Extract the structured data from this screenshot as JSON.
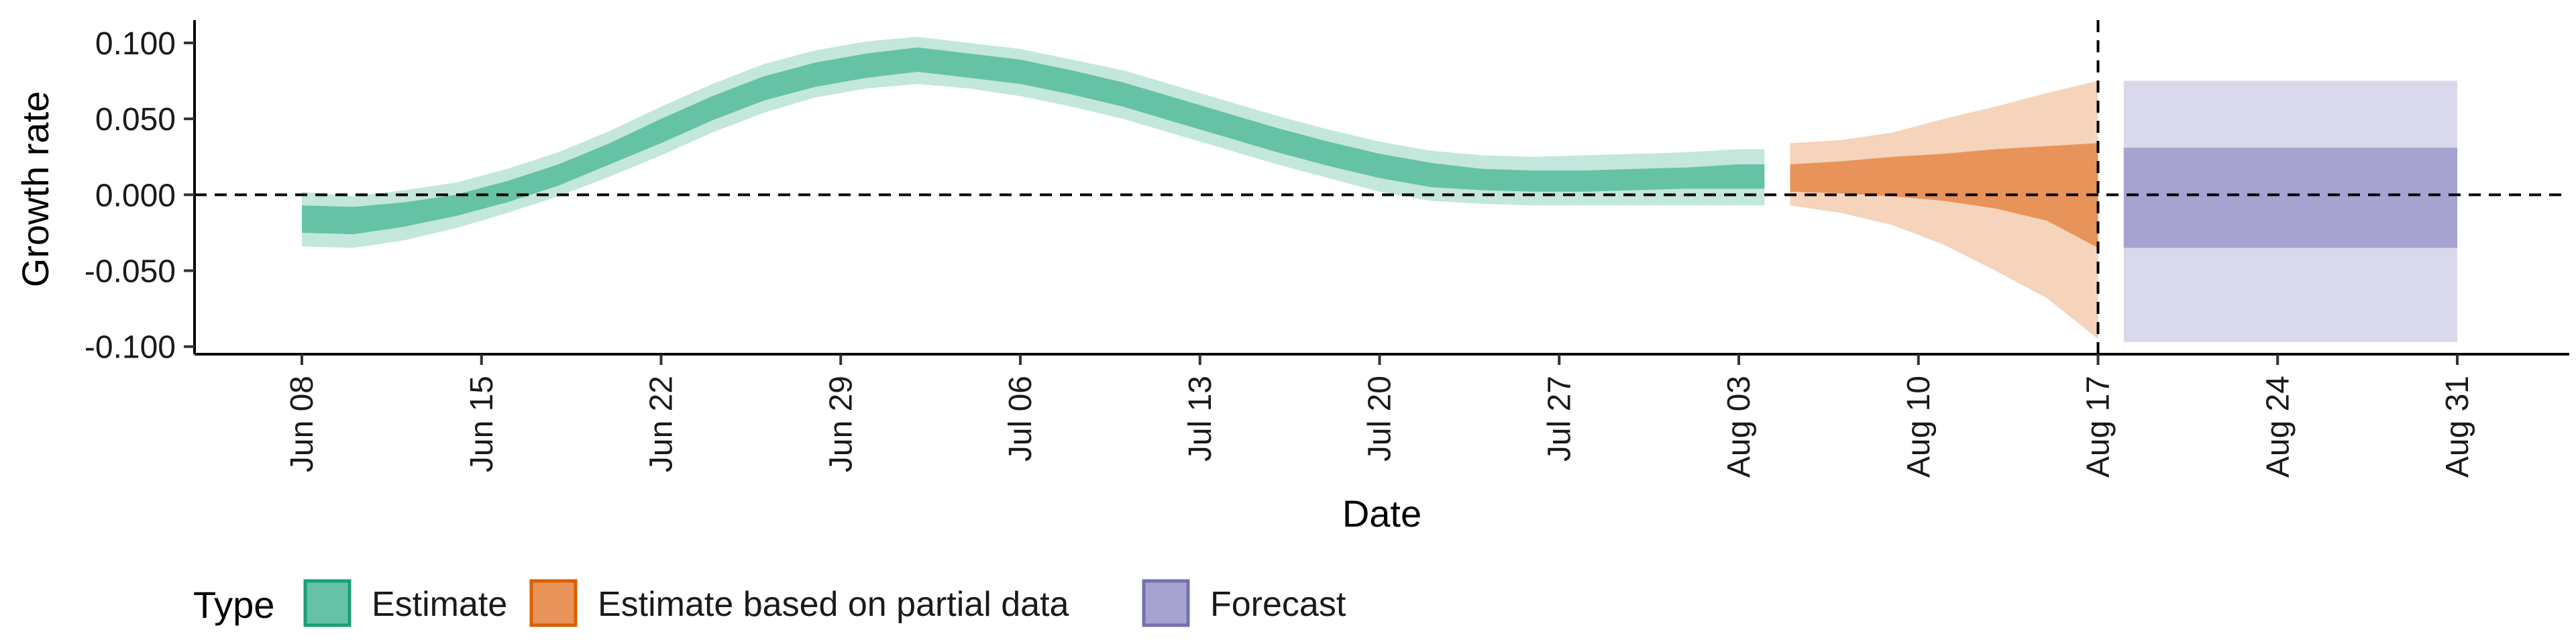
{
  "chart_data": {
    "type": "area",
    "xlabel": "Date",
    "ylabel": "Growth rate",
    "ylim": [
      -0.105,
      0.115
    ],
    "x_ticks": [
      "Jun 08",
      "Jun 15",
      "Jun 22",
      "Jun 29",
      "Jul 06",
      "Jul 13",
      "Jul 20",
      "Jul 27",
      "Aug 03",
      "Aug 10",
      "Aug 17",
      "Aug 24",
      "Aug 31"
    ],
    "y_ticks": [
      0.1,
      0.05,
      0.0,
      -0.05,
      -0.1
    ],
    "y_tick_labels": [
      "0.100",
      "0.050",
      "0.000",
      "-0.050",
      "-0.100"
    ],
    "x_range_days": [
      -1.5,
      0,
      90
    ],
    "reference_lines": {
      "horizontal_y": 0.0,
      "vertical_date": "Aug 17"
    },
    "legend": {
      "title": "Type",
      "position": "bottom-left",
      "items": [
        {
          "label": "Estimate",
          "fill": "#66c2a5",
          "stroke": "#1b9e77"
        },
        {
          "label": "Estimate based on partial data",
          "fill": "#e8935a",
          "stroke": "#d95f02"
        },
        {
          "label": "Forecast",
          "fill": "#a6a3d0",
          "stroke": "#7570b3"
        }
      ]
    },
    "series": [
      {
        "name": "Estimate",
        "color_inner": "#66c2a5",
        "color_outer": "#c3e7dc",
        "dates": [
          "Jun 08",
          "Jun 10",
          "Jun 12",
          "Jun 14",
          "Jun 16",
          "Jun 18",
          "Jun 20",
          "Jun 22",
          "Jun 24",
          "Jun 26",
          "Jun 28",
          "Jun 30",
          "Jul 02",
          "Jul 04",
          "Jul 06",
          "Jul 08",
          "Jul 10",
          "Jul 12",
          "Jul 14",
          "Jul 16",
          "Jul 18",
          "Jul 20",
          "Jul 22",
          "Jul 24",
          "Jul 26",
          "Jul 28",
          "Jul 30",
          "Aug 01",
          "Aug 03",
          "Aug 04"
        ],
        "median": [
          -0.016,
          -0.017,
          -0.013,
          -0.007,
          0.002,
          0.013,
          0.027,
          0.042,
          0.057,
          0.07,
          0.079,
          0.085,
          0.089,
          0.085,
          0.081,
          0.074,
          0.066,
          0.056,
          0.046,
          0.036,
          0.027,
          0.019,
          0.013,
          0.01,
          0.009,
          0.009,
          0.01,
          0.011,
          0.012,
          0.012
        ],
        "inner_lo": [
          -0.025,
          -0.026,
          -0.021,
          -0.014,
          -0.005,
          0.006,
          0.02,
          0.034,
          0.049,
          0.062,
          0.071,
          0.077,
          0.081,
          0.077,
          0.073,
          0.066,
          0.058,
          0.048,
          0.038,
          0.028,
          0.019,
          0.011,
          0.005,
          0.003,
          0.002,
          0.002,
          0.003,
          0.004,
          0.004,
          0.004
        ],
        "inner_hi": [
          -0.007,
          -0.008,
          -0.005,
          0.0,
          0.009,
          0.02,
          0.034,
          0.05,
          0.065,
          0.078,
          0.087,
          0.093,
          0.097,
          0.093,
          0.089,
          0.082,
          0.074,
          0.064,
          0.054,
          0.044,
          0.035,
          0.027,
          0.021,
          0.017,
          0.016,
          0.016,
          0.017,
          0.018,
          0.02,
          0.02
        ],
        "outer_lo": [
          -0.034,
          -0.035,
          -0.03,
          -0.022,
          -0.012,
          -0.001,
          0.012,
          0.026,
          0.041,
          0.054,
          0.064,
          0.07,
          0.073,
          0.07,
          0.065,
          0.058,
          0.05,
          0.04,
          0.03,
          0.02,
          0.011,
          0.002,
          -0.004,
          -0.006,
          -0.007,
          -0.007,
          -0.007,
          -0.007,
          -0.007,
          -0.007
        ],
        "outer_hi": [
          0.002,
          -0.001,
          0.003,
          0.008,
          0.017,
          0.028,
          0.042,
          0.058,
          0.073,
          0.086,
          0.095,
          0.101,
          0.104,
          0.1,
          0.096,
          0.089,
          0.082,
          0.072,
          0.062,
          0.052,
          0.043,
          0.035,
          0.029,
          0.026,
          0.025,
          0.026,
          0.027,
          0.028,
          0.03,
          0.03
        ]
      },
      {
        "name": "Estimate based on partial data",
        "color_inner": "#e8935a",
        "color_outer": "#f6d3bb",
        "dates": [
          "Aug 05",
          "Aug 07",
          "Aug 09",
          "Aug 11",
          "Aug 13",
          "Aug 15",
          "Aug 17"
        ],
        "median": [
          0.012,
          0.013,
          0.013,
          0.012,
          0.01,
          0.006,
          0.0
        ],
        "inner_lo": [
          0.002,
          0.001,
          -0.001,
          -0.004,
          -0.009,
          -0.017,
          -0.035
        ],
        "inner_hi": [
          0.02,
          0.022,
          0.025,
          0.027,
          0.03,
          0.032,
          0.034
        ],
        "outer_lo": [
          -0.007,
          -0.012,
          -0.02,
          -0.033,
          -0.05,
          -0.068,
          -0.095
        ],
        "outer_hi": [
          0.034,
          0.036,
          0.041,
          0.05,
          0.058,
          0.067,
          0.075
        ]
      },
      {
        "name": "Forecast",
        "color_inner": "#a6a3d0",
        "color_outer": "#dad9eb",
        "dates": [
          "Aug 18",
          "Aug 31"
        ],
        "median": [
          0.0,
          0.0
        ],
        "inner_lo": [
          -0.035,
          -0.035
        ],
        "inner_hi": [
          0.031,
          0.031
        ],
        "outer_lo": [
          -0.097,
          -0.097
        ],
        "outer_hi": [
          0.075,
          0.075
        ]
      }
    ]
  }
}
